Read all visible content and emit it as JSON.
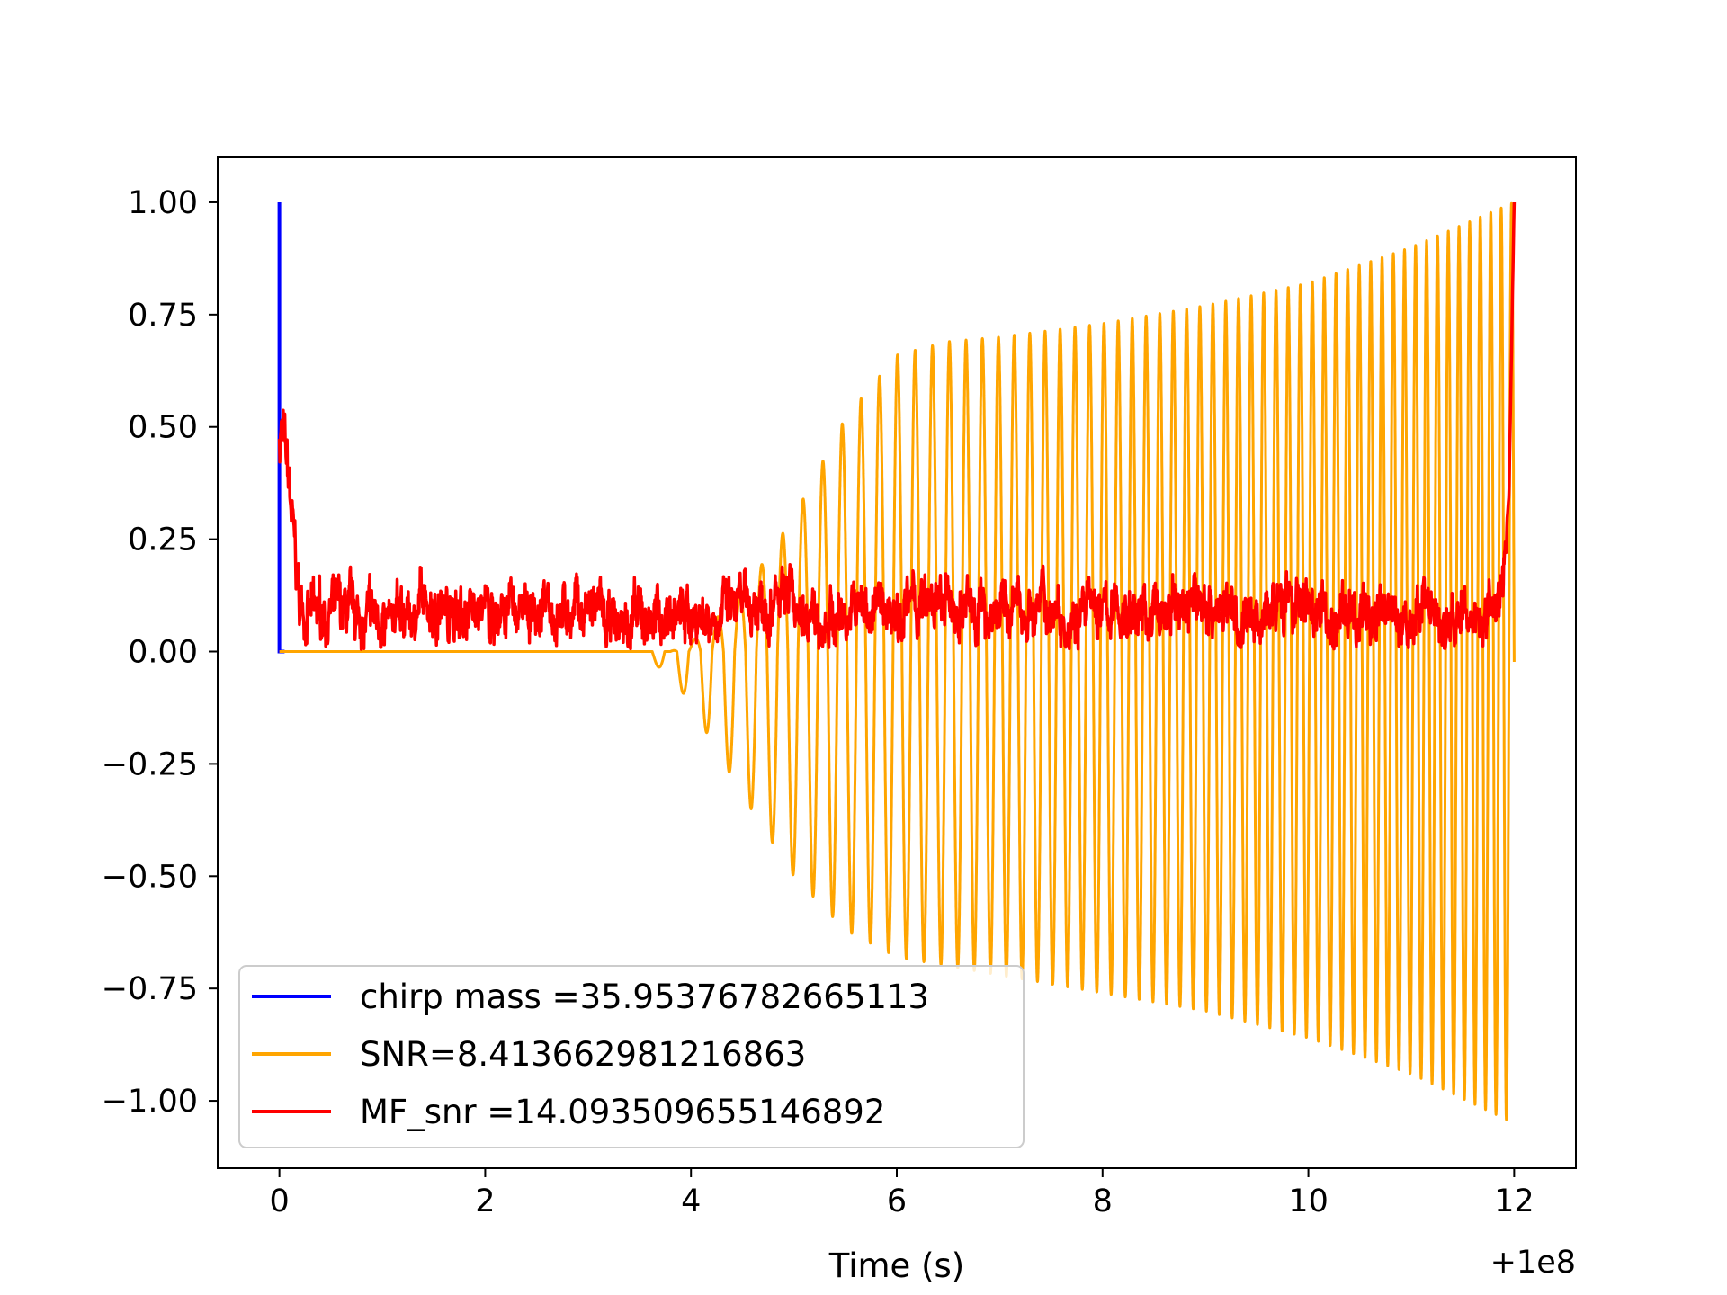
{
  "chart_data": {
    "type": "line",
    "title": "",
    "xlabel": "Time (s)",
    "ylabel": "",
    "x_offset_label": "+1e8",
    "xlim": [
      -0.6,
      12.6
    ],
    "ylim": [
      -1.15,
      1.1
    ],
    "xticks": [
      0,
      2,
      4,
      6,
      8,
      10,
      12
    ],
    "xtick_labels": [
      "0",
      "2",
      "4",
      "6",
      "8",
      "10",
      "12"
    ],
    "yticks": [
      1.0,
      0.75,
      0.5,
      0.25,
      0.0,
      -0.25,
      -0.5,
      -0.75,
      -1.0
    ],
    "ytick_labels": [
      "1.00",
      "0.75",
      "0.50",
      "0.25",
      "0.00",
      "−0.25",
      "−0.50",
      "−0.75",
      "−1.00"
    ],
    "grid": false,
    "legend_position": "lower-left",
    "series": [
      {
        "name": "chirp mass =35.95376782665113",
        "color": "#0000ff",
        "x": [
          0.0,
          0.0,
          0.0,
          0.02,
          0.05
        ],
        "y": [
          0.0,
          1.0,
          0.0,
          0.0,
          0.0
        ]
      },
      {
        "name": "SNR=8.413662981216863",
        "color": "#ffa500",
        "style": "chirp",
        "envelope_x": [
          0.0,
          3.3,
          3.5,
          3.8,
          4.0,
          4.5,
          5.0,
          5.5,
          6.0,
          6.5,
          7.0,
          8.0,
          9.0,
          10.0,
          11.0,
          12.0
        ],
        "envelope_upper": [
          0.0,
          0.0,
          0.0,
          0.0,
          0.02,
          0.13,
          0.3,
          0.52,
          0.66,
          0.69,
          0.7,
          0.73,
          0.77,
          0.82,
          0.9,
          1.0
        ],
        "envelope_lower": [
          0.0,
          0.0,
          -0.01,
          -0.05,
          -0.12,
          -0.32,
          -0.5,
          -0.62,
          -0.68,
          -0.7,
          -0.72,
          -0.76,
          -0.8,
          -0.86,
          -0.94,
          -1.05
        ],
        "cycles_start_x": 3.5,
        "cycles_per_unit_start": 4.0,
        "cycles_per_unit_end": 10.0
      },
      {
        "name": "MF_snr =14.093509655146892",
        "color": "#ff0000",
        "style": "noise",
        "x": [
          0.0,
          0.02,
          0.05,
          0.1,
          0.15,
          0.2,
          0.3,
          0.5,
          0.8,
          1.0,
          1.2,
          1.5,
          1.8,
          2.0,
          2.3,
          2.5,
          2.8,
          3.0,
          3.3,
          3.5,
          3.8,
          4.0,
          4.3,
          4.5,
          4.9,
          5.2,
          5.5,
          6.0,
          6.5,
          7.0,
          7.5,
          8.0,
          8.5,
          8.9,
          9.3,
          9.7,
          10.0,
          10.5,
          11.0,
          11.5,
          11.8,
          11.9,
          11.95,
          12.0
        ],
        "y": [
          0.47,
          0.5,
          0.45,
          0.35,
          0.22,
          0.1,
          0.08,
          0.09,
          0.07,
          0.08,
          0.09,
          0.1,
          0.09,
          0.08,
          0.09,
          0.08,
          0.09,
          0.08,
          0.06,
          0.07,
          0.08,
          0.08,
          0.09,
          0.09,
          0.14,
          0.09,
          0.09,
          0.1,
          0.1,
          0.09,
          0.1,
          0.09,
          0.08,
          0.12,
          0.08,
          0.09,
          0.08,
          0.08,
          0.08,
          0.07,
          0.1,
          0.2,
          0.35,
          1.0
        ]
      }
    ]
  }
}
